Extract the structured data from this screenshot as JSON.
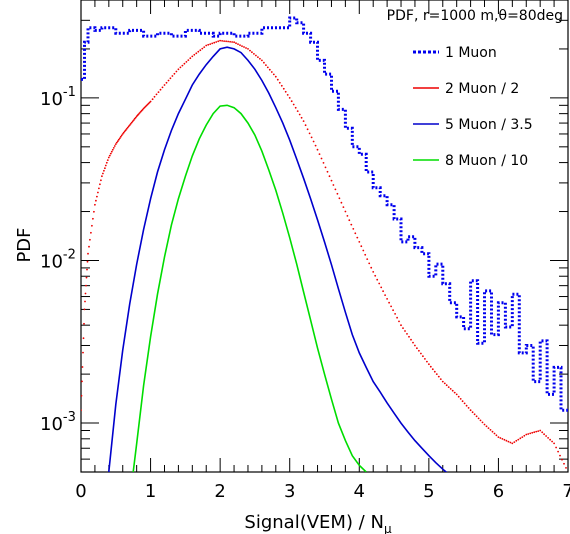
{
  "chart_data": {
    "type": "line",
    "title": "PDF, r=1000 m,θ=80deg",
    "xlabel": "Signal(VEM) / N",
    "xlabel_sub": "μ",
    "ylabel": "PDF",
    "xlim": [
      0,
      7
    ],
    "ylim": [
      0.0005,
      0.4
    ],
    "yscale": "log",
    "x_ticks": [
      "0",
      "1",
      "2",
      "3",
      "4",
      "5",
      "6",
      "7"
    ],
    "y_ticks": [
      {
        "base": "10",
        "exp": "-3",
        "value": 0.001
      },
      {
        "base": "10",
        "exp": "-2",
        "value": 0.01
      },
      {
        "base": "10",
        "exp": "-1",
        "value": 0.1
      }
    ],
    "legend": {
      "placement": "top-right"
    },
    "series": [
      {
        "name": "1 Muon",
        "color": "#0000ee",
        "style": "step",
        "x": [
          0.0,
          0.05,
          0.1,
          0.2,
          0.3,
          0.5,
          0.7,
          0.9,
          1.1,
          1.3,
          1.5,
          1.7,
          1.9,
          2.0,
          2.2,
          2.4,
          2.6,
          2.8,
          3.0,
          3.1,
          3.2,
          3.3,
          3.4,
          3.5,
          3.6,
          3.7,
          3.8,
          3.9,
          4.0,
          4.1,
          4.2,
          4.3,
          4.4,
          4.5,
          4.6,
          4.7,
          4.8,
          4.9,
          5.0,
          5.1,
          5.2,
          5.3,
          5.4,
          5.5,
          5.6,
          5.7,
          5.8,
          5.9,
          6.0,
          6.1,
          6.2,
          6.3,
          6.4,
          6.5,
          6.6,
          6.7,
          6.8,
          6.9
        ],
        "y": [
          0.13,
          0.22,
          0.27,
          0.26,
          0.27,
          0.25,
          0.26,
          0.24,
          0.25,
          0.24,
          0.26,
          0.25,
          0.24,
          0.25,
          0.24,
          0.25,
          0.27,
          0.27,
          0.31,
          0.29,
          0.25,
          0.22,
          0.17,
          0.14,
          0.11,
          0.085,
          0.065,
          0.05,
          0.045,
          0.035,
          0.028,
          0.025,
          0.022,
          0.018,
          0.013,
          0.014,
          0.012,
          0.011,
          0.008,
          0.0095,
          0.0072,
          0.0055,
          0.0045,
          0.0038,
          0.0075,
          0.0031,
          0.0065,
          0.0035,
          0.0055,
          0.0039,
          0.0062,
          0.0027,
          0.003,
          0.0018,
          0.0032,
          0.0015,
          0.0022,
          0.0012
        ]
      },
      {
        "name": "2 Muon / 2",
        "color": "#ee0000",
        "style": "dots",
        "x": [
          0.0,
          0.05,
          0.1,
          0.2,
          0.3,
          0.4,
          0.5,
          0.6,
          0.7,
          0.8,
          0.9,
          1.0,
          1.2,
          1.4,
          1.6,
          1.8,
          2.0,
          2.2,
          2.4,
          2.6,
          2.8,
          3.0,
          3.2,
          3.4,
          3.6,
          3.8,
          4.0,
          4.2,
          4.4,
          4.6,
          4.8,
          5.0,
          5.2,
          5.4,
          5.6,
          5.8,
          6.0,
          6.2,
          6.4,
          6.6,
          6.8,
          7.0
        ],
        "y": [
          0.0012,
          0.005,
          0.011,
          0.022,
          0.033,
          0.043,
          0.052,
          0.06,
          0.068,
          0.077,
          0.086,
          0.095,
          0.12,
          0.15,
          0.18,
          0.21,
          0.225,
          0.22,
          0.2,
          0.17,
          0.135,
          0.1,
          0.072,
          0.048,
          0.031,
          0.02,
          0.013,
          0.0085,
          0.0058,
          0.004,
          0.003,
          0.0023,
          0.0018,
          0.0015,
          0.0012,
          0.00098,
          0.00082,
          0.00075,
          0.00085,
          0.0009,
          0.00075,
          0.0005
        ]
      },
      {
        "name": "5 Muon / 3.5",
        "color": "#0000cc",
        "style": "line",
        "x": [
          0.4,
          0.5,
          0.6,
          0.7,
          0.8,
          0.9,
          1.0,
          1.1,
          1.2,
          1.3,
          1.4,
          1.5,
          1.6,
          1.7,
          1.8,
          1.9,
          2.0,
          2.1,
          2.2,
          2.3,
          2.4,
          2.5,
          2.6,
          2.7,
          2.8,
          2.9,
          3.0,
          3.1,
          3.2,
          3.3,
          3.4,
          3.5,
          3.6,
          3.7,
          3.8,
          3.9,
          4.0,
          4.1,
          4.2,
          4.3,
          4.4,
          4.5,
          4.6,
          4.7,
          4.8,
          4.9,
          5.0,
          5.1,
          5.2,
          5.3
        ],
        "y": [
          0.0005,
          0.0013,
          0.0028,
          0.0054,
          0.0095,
          0.0155,
          0.024,
          0.035,
          0.048,
          0.063,
          0.08,
          0.098,
          0.12,
          0.14,
          0.16,
          0.18,
          0.2,
          0.205,
          0.2,
          0.19,
          0.17,
          0.15,
          0.128,
          0.107,
          0.087,
          0.07,
          0.055,
          0.042,
          0.032,
          0.024,
          0.0178,
          0.013,
          0.0094,
          0.0067,
          0.0048,
          0.0035,
          0.0027,
          0.0022,
          0.0018,
          0.00155,
          0.00133,
          0.00115,
          0.001,
          0.00088,
          0.00078,
          0.0007,
          0.00063,
          0.00057,
          0.00052,
          0.00048
        ]
      },
      {
        "name": "8 Muon / 10",
        "color": "#00dd00",
        "style": "line",
        "x": [
          0.75,
          0.8,
          0.9,
          1.0,
          1.1,
          1.2,
          1.3,
          1.4,
          1.5,
          1.6,
          1.7,
          1.8,
          1.9,
          2.0,
          2.1,
          2.2,
          2.3,
          2.4,
          2.5,
          2.6,
          2.7,
          2.8,
          2.9,
          3.0,
          3.1,
          3.2,
          3.3,
          3.4,
          3.5,
          3.6,
          3.7,
          3.8,
          3.9,
          4.0,
          4.1
        ],
        "y": [
          0.0005,
          0.00075,
          0.0017,
          0.0034,
          0.0062,
          0.0105,
          0.0165,
          0.024,
          0.033,
          0.044,
          0.056,
          0.068,
          0.08,
          0.089,
          0.09,
          0.087,
          0.08,
          0.07,
          0.059,
          0.047,
          0.036,
          0.027,
          0.0195,
          0.0138,
          0.0095,
          0.0064,
          0.0043,
          0.0029,
          0.002,
          0.0014,
          0.001,
          0.00078,
          0.00063,
          0.00055,
          0.0005
        ]
      }
    ]
  }
}
